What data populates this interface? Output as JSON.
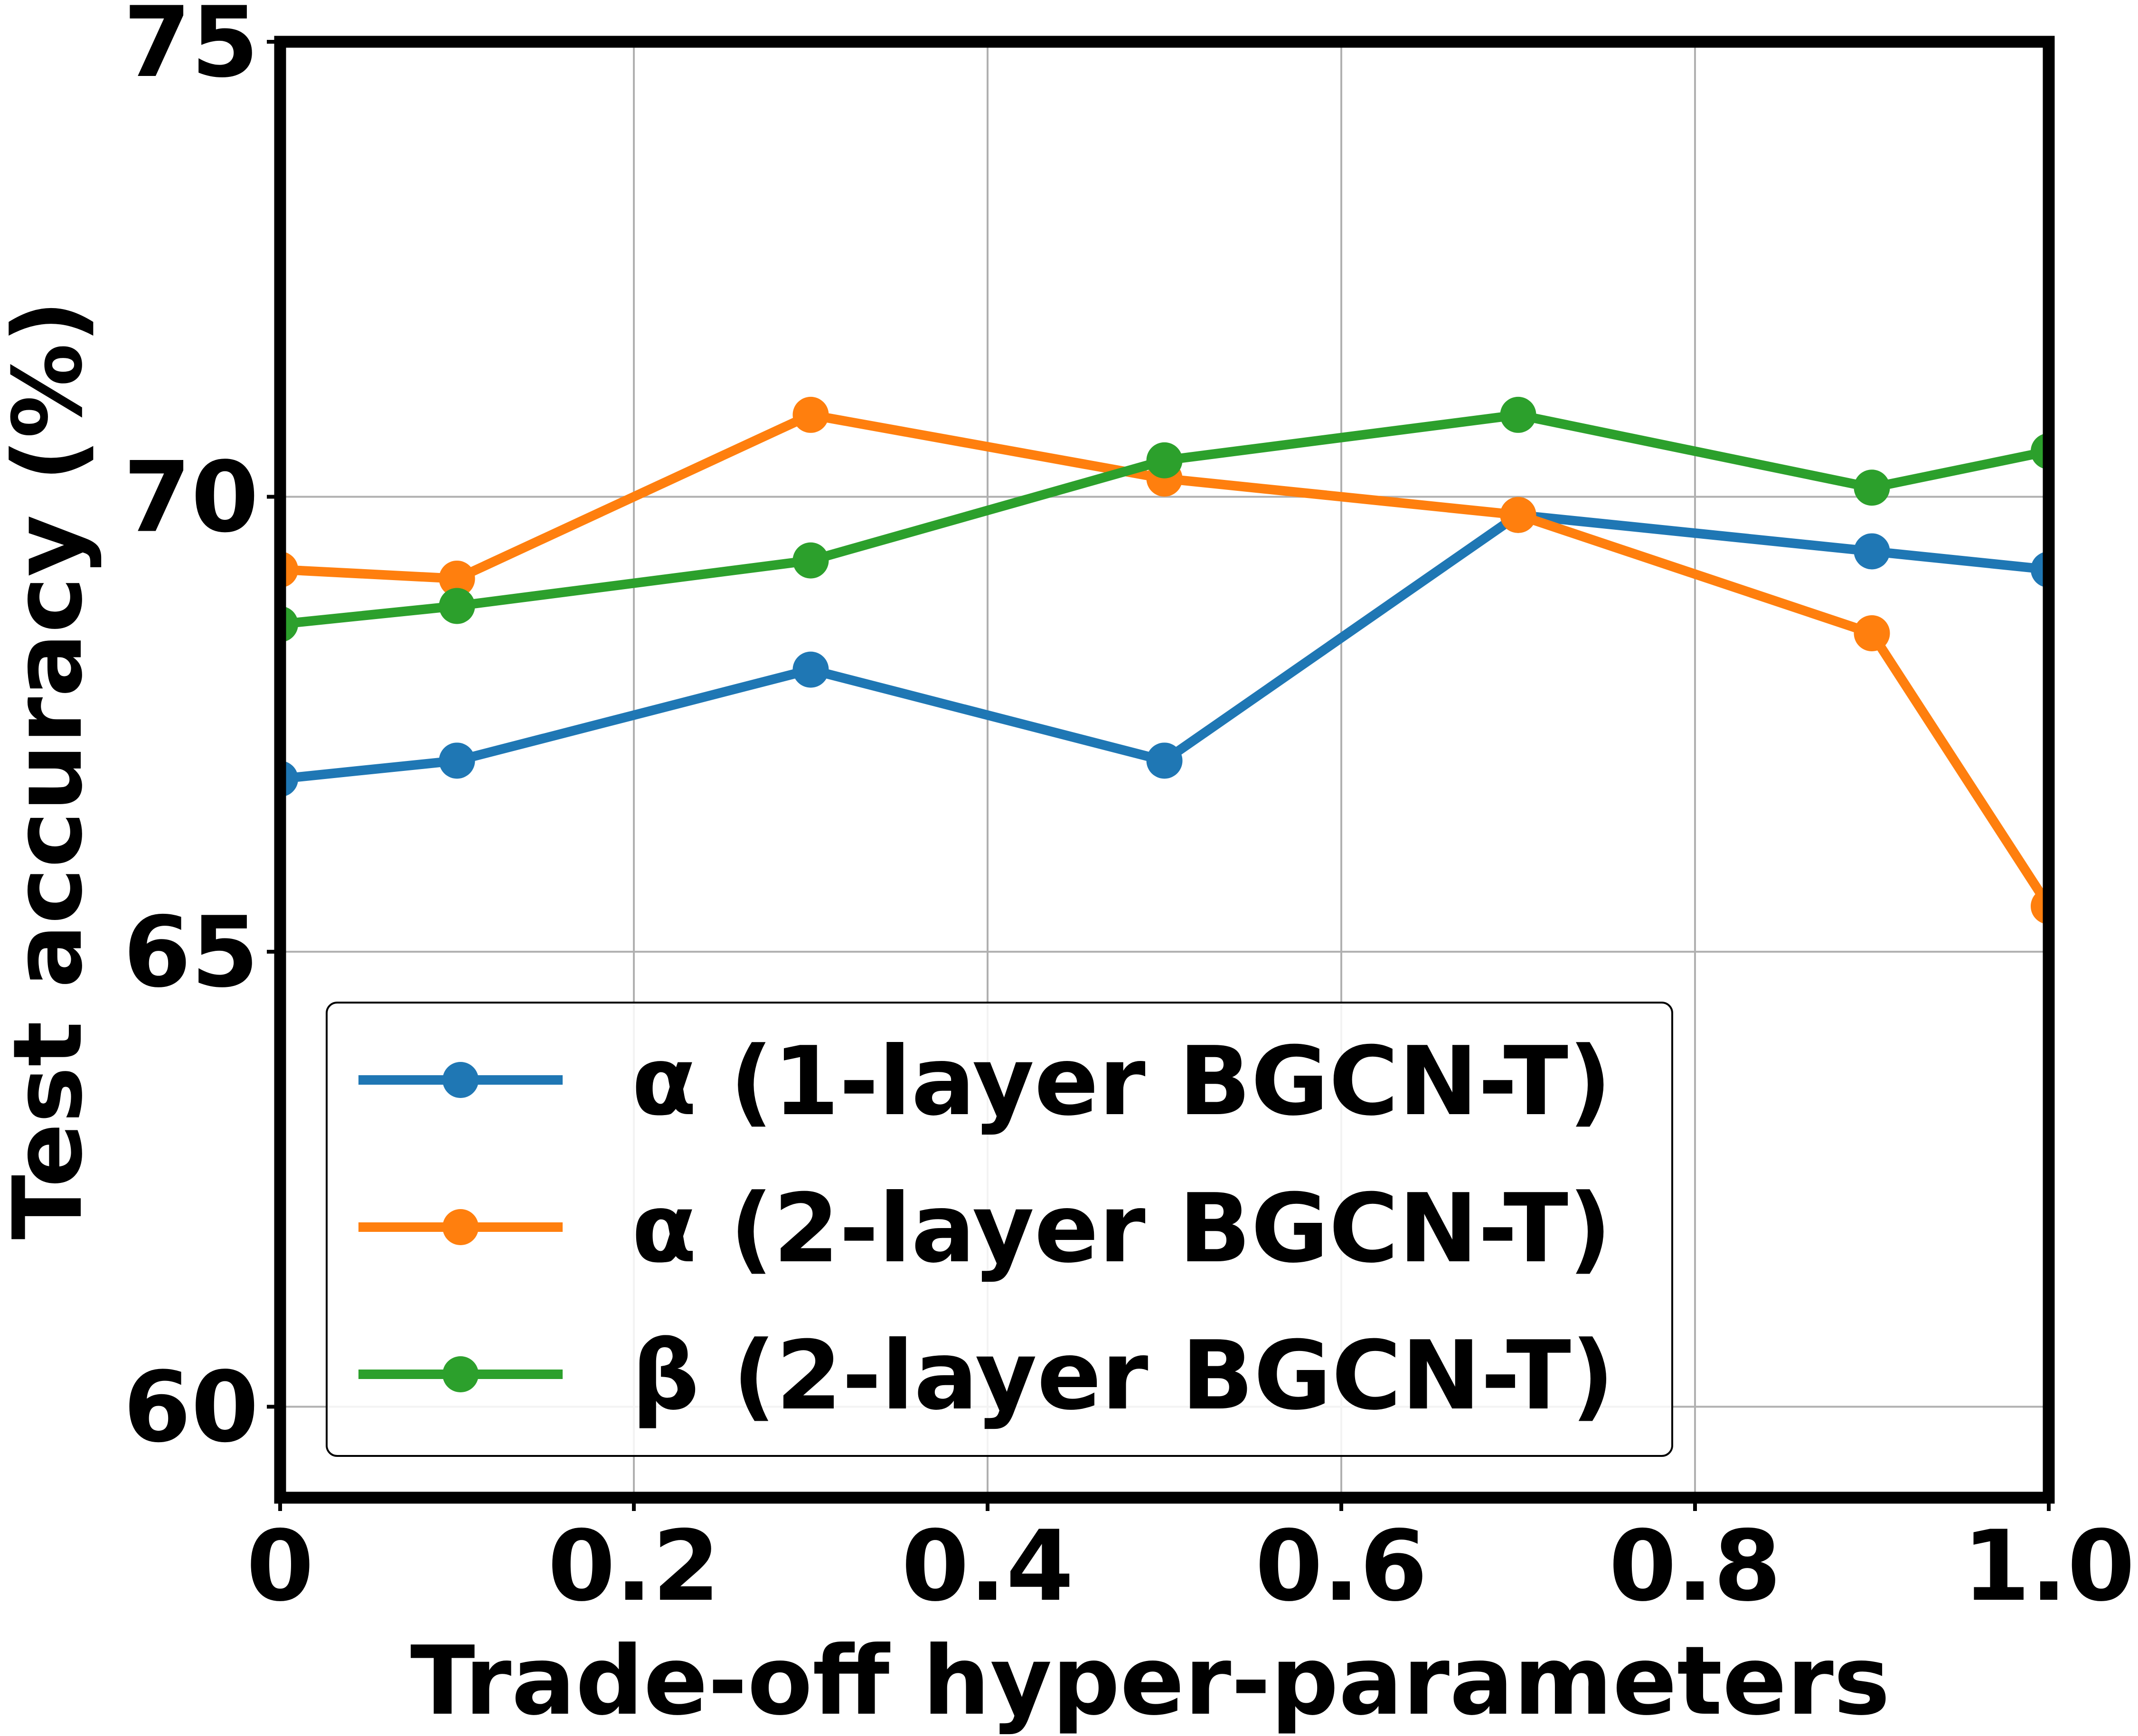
{
  "chart_data": {
    "type": "line",
    "xlabel": "Trade-off hyper-parameters",
    "ylabel": "Test accuracy (%)",
    "xlim": [
      0,
      1.0
    ],
    "ylim": [
      59.0,
      75.0
    ],
    "x_ticks": [
      0,
      0.2,
      0.4,
      0.6,
      0.8,
      1.0
    ],
    "x_tick_labels": [
      "0",
      "0.2",
      "0.4",
      "0.6",
      "0.8",
      "1.0"
    ],
    "y_ticks": [
      60,
      65,
      70,
      75
    ],
    "y_tick_labels": [
      "60",
      "65",
      "70",
      "75"
    ],
    "grid": true,
    "legend_position": "lower-left",
    "x": [
      0,
      0.1,
      0.3,
      0.5,
      0.7,
      0.9,
      1.0
    ],
    "series": [
      {
        "name": "α (1-layer BGCN-T)",
        "color": "#1f77b4",
        "values": [
          66.9,
          67.1,
          68.1,
          67.1,
          69.8,
          69.4,
          69.2
        ]
      },
      {
        "name": "α (2-layer BGCN-T)",
        "color": "#ff7f0e",
        "values": [
          69.2,
          69.1,
          70.9,
          70.2,
          69.8,
          68.5,
          65.5
        ]
      },
      {
        "name": "β (2-layer BGCN-T)",
        "color": "#2ca02c",
        "values": [
          68.6,
          68.8,
          69.3,
          70.4,
          70.9,
          70.1,
          70.5
        ]
      }
    ]
  }
}
